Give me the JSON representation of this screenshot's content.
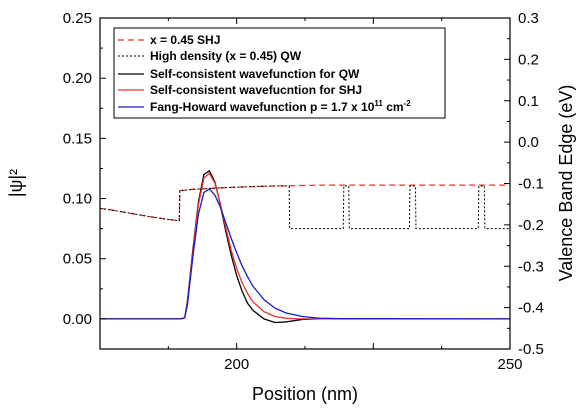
{
  "chart_data": {
    "type": "line",
    "xlabel": "Position (nm)",
    "ylabel_left": "|ψ|²",
    "ylabel_right": "Valence Band Edge (eV)",
    "xlim": [
      175,
      250
    ],
    "ylim_left": [
      -0.025,
      0.25
    ],
    "ylim_right": [
      -0.5,
      0.3
    ],
    "x_ticks": [
      200,
      250
    ],
    "y_ticks_left": [
      "0.00",
      "0.05",
      "0.10",
      "0.15",
      "0.20",
      "0.25"
    ],
    "y_ticks_right": [
      "-0.5",
      "-0.4",
      "-0.3",
      "-0.2",
      "-0.1",
      "0.0",
      "0.1",
      "0.2",
      "0.3"
    ],
    "legend_position": "top-left",
    "legend": [
      {
        "text": "x = 0.45 SHJ"
      },
      {
        "text": "High density (x = 0.45) QW"
      },
      {
        "text": "Self-consistent wavefunction for QW"
      },
      {
        "text": "Self-consistent wavefucntion for SHJ"
      },
      {
        "text_before": "Fang-Howard wavefunction p = 1.7 x 10",
        "sup1": "11",
        "text_mid": " cm",
        "sup2": "-2"
      }
    ],
    "series": [
      {
        "name": "x = 0.45 SHJ",
        "axis": "right",
        "color": "#e8302a",
        "style": "dashed",
        "x": [
          175,
          178,
          181,
          184,
          187,
          189.5,
          189.6,
          190,
          192,
          195,
          198,
          202,
          207,
          215,
          225,
          235,
          250
        ],
        "y": [
          -0.16,
          -0.166,
          -0.173,
          -0.18,
          -0.186,
          -0.19,
          -0.117,
          -0.117,
          -0.114,
          -0.112,
          -0.11,
          -0.108,
          -0.106,
          -0.104,
          -0.104,
          -0.104,
          -0.104
        ]
      },
      {
        "name": "High density (x = 0.45) QW",
        "axis": "right",
        "color": "#000000",
        "style": "dotted",
        "x": [
          175,
          178,
          181,
          184,
          187,
          189.5,
          189.6,
          190,
          192,
          195,
          198,
          202,
          206,
          209.6,
          209.7,
          219.5,
          219.6,
          220.5,
          220.6,
          231.6,
          231.7,
          232.7,
          232.8,
          244.2,
          244.3,
          245.3,
          245.4,
          250
        ],
        "y": [
          -0.16,
          -0.166,
          -0.173,
          -0.18,
          -0.186,
          -0.19,
          -0.117,
          -0.117,
          -0.114,
          -0.112,
          -0.11,
          -0.108,
          -0.106,
          -0.106,
          -0.209,
          -0.209,
          -0.106,
          -0.106,
          -0.209,
          -0.209,
          -0.106,
          -0.106,
          -0.209,
          -0.209,
          -0.106,
          -0.106,
          -0.209,
          -0.209
        ]
      },
      {
        "name": "Self-consistent wavefunction for QW",
        "axis": "left",
        "color": "#000000",
        "style": "solid",
        "x": [
          175,
          189.8,
          190.5,
          191,
          192,
          193,
          194,
          195,
          196,
          197,
          198,
          199,
          200,
          201,
          202,
          203,
          205,
          207,
          209,
          212,
          215,
          250
        ],
        "y": [
          0,
          0,
          0.001,
          0.015,
          0.058,
          0.097,
          0.12,
          0.123,
          0.114,
          0.095,
          0.073,
          0.053,
          0.036,
          0.023,
          0.013,
          0.007,
          0.0,
          -0.003,
          -0.0025,
          -0.0005,
          0,
          0
        ]
      },
      {
        "name": "Self-consistent wavefucntion for SHJ",
        "axis": "left",
        "color": "#e8302a",
        "style": "solid",
        "x": [
          175,
          189.8,
          190.5,
          191,
          192,
          193,
          194,
          195,
          196,
          197,
          198,
          199,
          200,
          201,
          202,
          203,
          205,
          207,
          209,
          211,
          215,
          250
        ],
        "y": [
          0,
          0,
          0.001,
          0.014,
          0.056,
          0.095,
          0.117,
          0.121,
          0.113,
          0.096,
          0.076,
          0.057,
          0.042,
          0.03,
          0.021,
          0.014,
          0.006,
          0.002,
          0.0005,
          0.0001,
          0,
          0
        ]
      },
      {
        "name": "Fang-Howard wavefunction p = 1.7 x 10^11 cm^-2",
        "axis": "left",
        "color": "#1a1acc",
        "style": "solid",
        "x": [
          175,
          189.8,
          190.5,
          191,
          192,
          193,
          194,
          195,
          196,
          197,
          198,
          199,
          200,
          201,
          202,
          203,
          205,
          207,
          209,
          212,
          215,
          220,
          250
        ],
        "y": [
          0,
          0,
          0.001,
          0.012,
          0.052,
          0.087,
          0.105,
          0.108,
          0.103,
          0.093,
          0.08,
          0.067,
          0.055,
          0.044,
          0.035,
          0.027,
          0.016,
          0.009,
          0.005,
          0.002,
          0.0006,
          0.0001,
          0
        ]
      }
    ]
  }
}
